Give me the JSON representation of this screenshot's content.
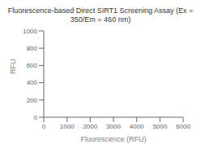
{
  "chart_data": {
    "type": "scatter",
    "title": "Fluorescence-based Direct SIRT1 Screening Assay (Ex = 350/Em = 460 nm)",
    "xlabel": "Fluorescence (RFU)",
    "ylabel": "RFU",
    "xlim": [
      0,
      6000
    ],
    "ylim": [
      0,
      1000
    ],
    "xticks": [
      0,
      1000,
      2000,
      3000,
      4000,
      5000,
      6000
    ],
    "yticks": [
      0,
      200,
      400,
      600,
      800,
      1000
    ]
  }
}
